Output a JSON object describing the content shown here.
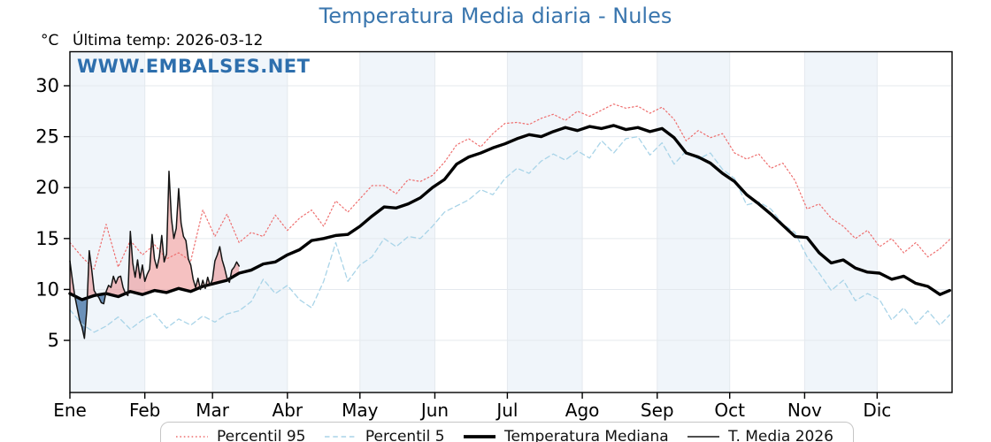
{
  "header": {
    "title": "Temperatura Media diaria - Nules",
    "unit": "°C",
    "last_temp_text": "Última temp: 2026-03-12",
    "watermark": "WWW.EMBALSES.NET"
  },
  "colors": {
    "title_blue": "#3a76ae",
    "watermark_blue": "#2e6fad",
    "band_blue": "#f0f5fa",
    "band_white": "#ffffff",
    "grid": "#e4e9ee",
    "spine": "#000000",
    "tick_label": "#000000",
    "p95_red": "#ee6e6e",
    "p5_blue": "#a9d4e8",
    "median_black": "#000000",
    "t2026_black": "#141414",
    "fill_above": "rgba(232,118,118,0.45)",
    "fill_below": "rgba(56,107,160,0.72)",
    "legend_border": "#c6c6c6"
  },
  "chart_data": {
    "type": "line",
    "title": "Temperatura Media diaria - Nules",
    "xlabel": "",
    "ylabel": "°C",
    "ylim": [
      -0.1,
      33.4
    ],
    "yticks": [
      5,
      10,
      15,
      20,
      25,
      30
    ],
    "grid": true,
    "month_bands_alternating": true,
    "categories_months": [
      "Ene",
      "Feb",
      "Mar",
      "Abr",
      "May",
      "Jun",
      "Jul",
      "Ago",
      "Sep",
      "Oct",
      "Nov",
      "Dic"
    ],
    "month_days": [
      31,
      28,
      31,
      30,
      31,
      30,
      31,
      31,
      30,
      31,
      30,
      31
    ],
    "legend_position": "bottom",
    "series": [
      {
        "name": "Percentil 95",
        "style": "dotted",
        "color": "#ee6e6e",
        "width": 1.2,
        "x_step_days": 5,
        "values": [
          14.6,
          13.2,
          12.0,
          16.4,
          12.2,
          14.8,
          13.4,
          14.4,
          13.0,
          13.6,
          12.8,
          17.8,
          15.2,
          17.4,
          14.6,
          15.6,
          15.2,
          17.3,
          15.8,
          17.0,
          17.8,
          16.2,
          18.7,
          17.6,
          18.9,
          20.2,
          20.2,
          19.4,
          20.8,
          20.6,
          21.2,
          22.5,
          24.2,
          24.8,
          24.0,
          25.3,
          26.3,
          26.4,
          26.2,
          26.8,
          27.2,
          26.6,
          27.5,
          27.0,
          27.6,
          28.2,
          27.8,
          28.0,
          27.3,
          27.9,
          26.7,
          24.6,
          25.6,
          24.9,
          25.3,
          23.4,
          22.8,
          23.3,
          21.9,
          22.4,
          20.7,
          17.9,
          18.4,
          17.0,
          16.2,
          15.0,
          15.8,
          14.2,
          15.0,
          13.6,
          14.6,
          13.2,
          14.0,
          14.9
        ]
      },
      {
        "name": "Percentil 5",
        "style": "dashed",
        "color": "#a9d4e8",
        "width": 1.3,
        "x_step_days": 5,
        "values": [
          8.0,
          6.6,
          5.8,
          6.4,
          7.3,
          6.1,
          7.0,
          7.6,
          6.2,
          7.1,
          6.5,
          7.4,
          6.8,
          7.6,
          7.9,
          8.8,
          11.0,
          9.6,
          10.4,
          9.0,
          8.2,
          10.8,
          14.6,
          10.8,
          12.4,
          13.2,
          15.0,
          14.2,
          15.2,
          15.0,
          16.2,
          17.6,
          18.2,
          18.8,
          19.8,
          19.3,
          20.9,
          21.9,
          21.4,
          22.6,
          23.3,
          22.7,
          23.6,
          22.9,
          24.6,
          23.4,
          24.8,
          25.0,
          23.2,
          24.4,
          22.3,
          23.6,
          22.8,
          23.4,
          21.8,
          20.9,
          18.3,
          18.6,
          17.9,
          16.4,
          15.6,
          13.2,
          11.6,
          9.9,
          10.9,
          8.9,
          9.6,
          9.0,
          7.0,
          8.2,
          6.6,
          7.9,
          6.5,
          7.5
        ]
      },
      {
        "name": "Temperatura Mediana",
        "style": "solid",
        "color": "#000000",
        "width": 3.4,
        "x_step_days": 5,
        "values": [
          9.6,
          9.0,
          9.4,
          9.6,
          9.3,
          9.8,
          9.5,
          9.9,
          9.7,
          10.1,
          9.8,
          10.3,
          10.6,
          10.9,
          11.6,
          11.9,
          12.5,
          12.7,
          13.4,
          13.9,
          14.8,
          15.0,
          15.3,
          15.4,
          16.2,
          17.2,
          18.1,
          18.0,
          18.4,
          19.0,
          20.0,
          20.8,
          22.3,
          23.0,
          23.4,
          23.9,
          24.3,
          24.8,
          25.2,
          25.0,
          25.5,
          25.9,
          25.6,
          26.0,
          25.8,
          26.1,
          25.7,
          25.9,
          25.5,
          25.8,
          24.9,
          23.4,
          23.0,
          22.4,
          21.4,
          20.6,
          19.3,
          18.4,
          17.4,
          16.3,
          15.2,
          15.1,
          13.6,
          12.6,
          12.9,
          12.1,
          11.7,
          11.6,
          11.0,
          11.3,
          10.6,
          10.3,
          9.5,
          9.9
        ]
      },
      {
        "name": "T. Media 2026",
        "style": "solid",
        "color": "#141414",
        "width": 1.5,
        "x_step_days": 1,
        "fill_vs_median": true,
        "values": [
          12.8,
          11.0,
          9.4,
          8.2,
          7.0,
          6.3,
          5.2,
          8.0,
          13.8,
          12.0,
          9.9,
          9.5,
          9.2,
          8.7,
          8.6,
          9.8,
          10.4,
          10.2,
          11.3,
          10.6,
          11.2,
          11.3,
          10.2,
          9.6,
          9.4,
          15.7,
          12.6,
          11.2,
          12.9,
          11.1,
          12.4,
          10.8,
          11.5,
          12.0,
          15.4,
          13.0,
          12.1,
          13.2,
          15.3,
          12.7,
          13.5,
          21.6,
          17.0,
          15.0,
          16.0,
          19.9,
          16.5,
          15.2,
          14.8,
          13.0,
          12.4,
          11.0,
          10.2,
          11.1,
          10.0,
          10.9,
          10.1,
          11.2,
          10.4,
          11.0,
          12.8,
          13.4,
          14.2,
          12.9,
          12.1,
          11.1,
          10.7,
          11.9,
          12.2,
          12.7,
          12.3
        ]
      }
    ]
  }
}
